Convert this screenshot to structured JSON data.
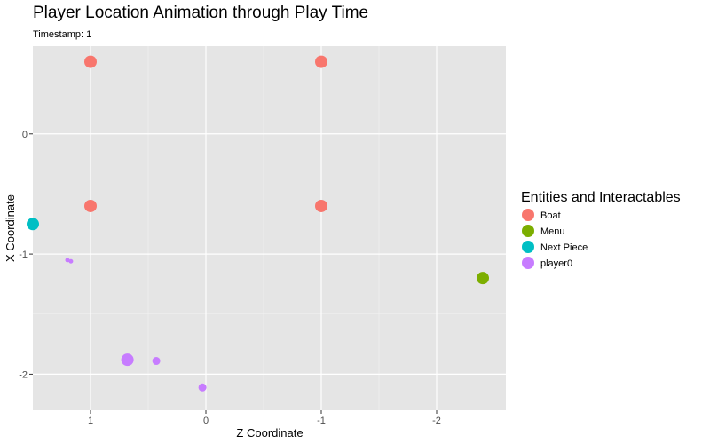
{
  "chart_data": {
    "type": "scatter",
    "title": "Player Location Animation through Play Time",
    "subtitle": "Timestamp: 1",
    "xlabel": "Z Coordinate",
    "ylabel": "X Coordinate",
    "x_reversed": true,
    "xlim": [
      1.5,
      -2.6
    ],
    "ylim": [
      -2.3,
      0.73
    ],
    "xticks": [
      1,
      0,
      -1,
      -2
    ],
    "xtick_labels": [
      "1",
      "0",
      "-1",
      "-2"
    ],
    "yticks": [
      0,
      -1,
      -2
    ],
    "ytick_labels": [
      "0",
      "-1",
      "-2"
    ],
    "grid": true,
    "legend_title": "Entities and Interactables",
    "legend_position": "right",
    "series": [
      {
        "name": "Boat",
        "color": "#F8766D",
        "points": [
          {
            "x": 1,
            "y": 0.6,
            "size": "large"
          },
          {
            "x": -1,
            "y": 0.6,
            "size": "large"
          },
          {
            "x": 1,
            "y": -0.6,
            "size": "large"
          },
          {
            "x": -1,
            "y": -0.6,
            "size": "large"
          }
        ]
      },
      {
        "name": "Menu",
        "color": "#7CAE00",
        "points": [
          {
            "x": -2.4,
            "y": -1.2,
            "size": "large"
          }
        ]
      },
      {
        "name": "Next Piece",
        "color": "#00BFC4",
        "points": [
          {
            "x": 1.5,
            "y": -0.75,
            "size": "large"
          }
        ]
      },
      {
        "name": "player0",
        "color": "#C77CFF",
        "points": [
          {
            "x": 0.68,
            "y": -1.88,
            "size": "large"
          },
          {
            "x": 0.43,
            "y": -1.89,
            "size": "medium"
          },
          {
            "x": 0.03,
            "y": -2.11,
            "size": "medium"
          },
          {
            "x": 1.17,
            "y": -1.06,
            "size": "small"
          },
          {
            "x": 1.2,
            "y": -1.05,
            "size": "small"
          }
        ]
      }
    ]
  }
}
